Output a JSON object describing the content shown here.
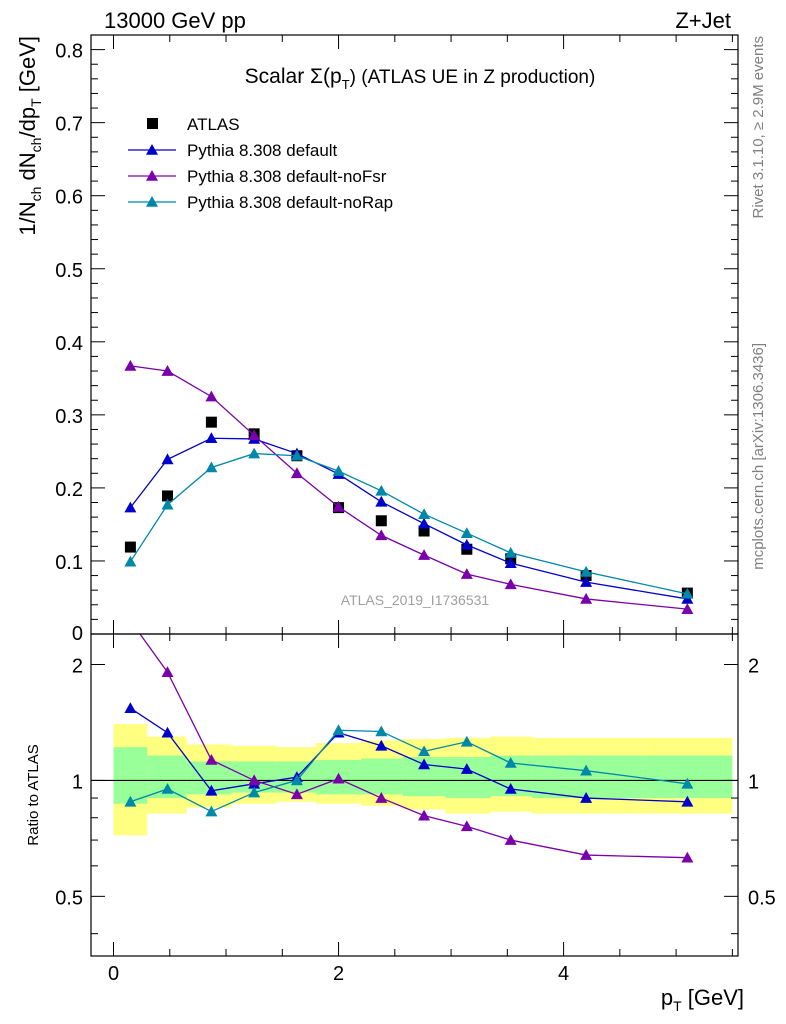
{
  "header": {
    "left": "13000 GeV pp",
    "right": "Z+Jet"
  },
  "side_labels": {
    "rivet": "Rivet 3.1.10, ≥ 2.9M events",
    "mcplots": "mcplots.cern.ch [arXiv:1306.3436]"
  },
  "colors": {
    "atlas": "#000000",
    "default": "#0000cc",
    "noFsr": "#7a00aa",
    "noRap": "#0088aa",
    "band_outer": "#ffff80",
    "band_inner": "#99ff99"
  },
  "chart_data": [
    {
      "type": "scatter",
      "title": "Scalar Σ(p_T) (ATLAS UE in Z production)",
      "title_parts": {
        "pre": "Scalar Σ(p",
        "sub": "T",
        "post": ") (ATLAS UE in Z production)"
      },
      "ylabel": "1/N_ch dN_ch/dp_T [GeV]",
      "ylabel_parts": {
        "a": "1/N",
        "a_sub": "ch",
        "b": " dN",
        "b_sub": "ch",
        "c": "/dp",
        "c_sub": "T",
        "d": " [GeV]"
      },
      "watermark": "ATLAS_2019_I1736531",
      "xlim": [
        -0.2,
        5.55
      ],
      "ylim": [
        0,
        0.82
      ],
      "yticks": [
        {
          "v": 0,
          "label": "0"
        },
        {
          "v": 0.1,
          "label": "0.1"
        },
        {
          "v": 0.2,
          "label": "0.2"
        },
        {
          "v": 0.3,
          "label": "0.3"
        },
        {
          "v": 0.4,
          "label": "0.4"
        },
        {
          "v": 0.5,
          "label": "0.5"
        },
        {
          "v": 0.6,
          "label": "0.6"
        },
        {
          "v": 0.7,
          "label": "0.7"
        },
        {
          "v": 0.8,
          "label": "0.8"
        }
      ],
      "legend": [
        "ATLAS",
        "Pythia 8.308 default",
        "Pythia 8.308 default-noFsr",
        "Pythia 8.308 default-noRap"
      ],
      "legend_position": "top-left",
      "x": [
        0.15,
        0.48,
        0.87,
        1.25,
        1.63,
        2.0,
        2.38,
        2.76,
        3.14,
        3.53,
        4.2,
        5.1
      ],
      "series": [
        {
          "name": "ATLAS",
          "marker": "square",
          "values": [
            0.119,
            0.189,
            0.29,
            0.274,
            0.244,
            0.173,
            0.155,
            0.141,
            0.116,
            0.103,
            0.08,
            0.056
          ]
        },
        {
          "name": "Pythia 8.308 default",
          "marker": "triangle",
          "values": [
            0.173,
            0.239,
            0.268,
            0.267,
            0.247,
            0.219,
            0.181,
            0.151,
            0.122,
            0.097,
            0.071,
            0.048
          ]
        },
        {
          "name": "Pythia 8.308 default-noFsr",
          "marker": "triangle",
          "values": [
            0.367,
            0.36,
            0.325,
            0.272,
            0.22,
            0.174,
            0.135,
            0.108,
            0.082,
            0.068,
            0.048,
            0.034
          ]
        },
        {
          "name": "Pythia 8.308 default-noRap",
          "marker": "triangle",
          "values": [
            0.099,
            0.177,
            0.228,
            0.247,
            0.244,
            0.223,
            0.196,
            0.164,
            0.138,
            0.111,
            0.085,
            0.055
          ]
        }
      ]
    },
    {
      "type": "line",
      "ylabel": "Ratio to ATLAS",
      "xlabel": "p_T [GeV]",
      "xlabel_parts": {
        "a": "p",
        "a_sub": "T",
        "b": " [GeV]"
      },
      "xlim": [
        -0.2,
        5.55
      ],
      "ylim": [
        0.35,
        2.4
      ],
      "yticks": [
        {
          "v": 0.5,
          "label": "0.5"
        },
        {
          "v": 1,
          "label": "1"
        },
        {
          "v": 2,
          "label": "2"
        }
      ],
      "xticks": [
        {
          "v": 0,
          "label": "0"
        },
        {
          "v": 2,
          "label": "2"
        },
        {
          "v": 4,
          "label": "4"
        }
      ],
      "band_edges": [
        0.0,
        0.3,
        0.65,
        1.05,
        1.45,
        1.8,
        2.2,
        2.57,
        2.95,
        3.35,
        3.72,
        4.7,
        5.5
      ],
      "band_outer": [
        [
          0.72,
          1.4
        ],
        [
          0.82,
          1.3
        ],
        [
          0.85,
          1.24
        ],
        [
          0.87,
          1.23
        ],
        [
          0.88,
          1.22
        ],
        [
          0.87,
          1.25
        ],
        [
          0.86,
          1.27
        ],
        [
          0.84,
          1.28
        ],
        [
          0.82,
          1.29
        ],
        [
          0.83,
          1.3
        ],
        [
          0.82,
          1.29
        ],
        [
          0.82,
          1.29
        ]
      ],
      "band_inner": [
        [
          0.87,
          1.22
        ],
        [
          0.9,
          1.16
        ],
        [
          0.92,
          1.12
        ],
        [
          0.93,
          1.12
        ],
        [
          0.93,
          1.12
        ],
        [
          0.92,
          1.13
        ],
        [
          0.92,
          1.14
        ],
        [
          0.91,
          1.15
        ],
        [
          0.9,
          1.15
        ],
        [
          0.91,
          1.16
        ],
        [
          0.9,
          1.16
        ],
        [
          0.9,
          1.16
        ]
      ],
      "x": [
        0.15,
        0.48,
        0.87,
        1.25,
        1.63,
        2.0,
        2.38,
        2.76,
        3.14,
        3.53,
        4.2,
        5.1
      ],
      "series": [
        {
          "name": "Pythia 8.308 default",
          "values": [
            1.54,
            1.33,
            0.94,
            0.98,
            1.02,
            1.33,
            1.23,
            1.1,
            1.07,
            0.95,
            0.9,
            0.88
          ]
        },
        {
          "name": "Pythia 8.308 default-noFsr",
          "values": [
            2.6,
            1.91,
            1.13,
            1.0,
            0.92,
            1.01,
            0.9,
            0.81,
            0.76,
            0.7,
            0.64,
            0.63
          ]
        },
        {
          "name": "Pythia 8.308 default-noRap",
          "values": [
            0.88,
            0.95,
            0.83,
            0.93,
            1.0,
            1.35,
            1.34,
            1.19,
            1.26,
            1.11,
            1.06,
            0.98
          ]
        }
      ]
    }
  ]
}
